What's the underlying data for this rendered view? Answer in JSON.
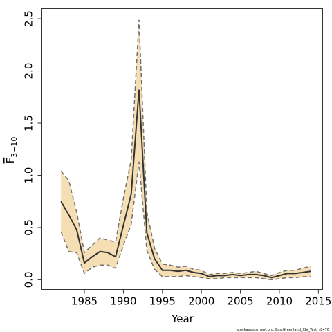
{
  "chart_data": {
    "type": "line",
    "xlabel": "Year",
    "ylabel": {
      "main": "F",
      "sub": "3−10"
    },
    "xlim": [
      1979.5,
      2015.5
    ],
    "ylim": [
      -0.09,
      2.6
    ],
    "xticks": [
      "1985",
      "1990",
      "1995",
      "2000",
      "2005",
      "2010",
      "2015"
    ],
    "yticks": [
      "0.0",
      "0.5",
      "1.0",
      "1.5",
      "2.0",
      "2.5"
    ],
    "band_color": "#f5deb3",
    "line_color": "#333333",
    "bound_color": "#707070",
    "series": [
      {
        "x": [
          1982,
          1983,
          1984,
          1985,
          1986,
          1987,
          1988,
          1989,
          1990,
          1991,
          1992,
          1993,
          1994,
          1995,
          1996,
          1997,
          1998,
          1999,
          2000,
          2001,
          2002,
          2003,
          2004,
          2005,
          2006,
          2007,
          2008,
          2009,
          2010,
          2011,
          2012,
          2013,
          2014
        ],
        "estimate": [
          0.75,
          0.62,
          0.48,
          0.16,
          0.22,
          0.27,
          0.26,
          0.22,
          0.52,
          0.82,
          1.82,
          0.45,
          0.2,
          0.09,
          0.09,
          0.08,
          0.09,
          0.07,
          0.06,
          0.03,
          0.04,
          0.04,
          0.05,
          0.04,
          0.05,
          0.05,
          0.04,
          0.02,
          0.04,
          0.06,
          0.06,
          0.07,
          0.08
        ],
        "upper": [
          1.04,
          0.95,
          0.65,
          0.26,
          0.33,
          0.4,
          0.38,
          0.36,
          0.78,
          1.15,
          2.49,
          0.65,
          0.3,
          0.15,
          0.14,
          0.12,
          0.13,
          0.1,
          0.09,
          0.05,
          0.06,
          0.06,
          0.07,
          0.06,
          0.07,
          0.08,
          0.06,
          0.04,
          0.07,
          0.09,
          0.09,
          0.11,
          0.13
        ],
        "lower": [
          0.46,
          0.27,
          0.26,
          0.06,
          0.12,
          0.14,
          0.14,
          0.11,
          0.33,
          0.53,
          1.13,
          0.28,
          0.1,
          0.03,
          0.03,
          0.03,
          0.04,
          0.03,
          0.02,
          0.01,
          0.01,
          0.02,
          0.02,
          0.02,
          0.02,
          0.02,
          0.01,
          0.0,
          0.01,
          0.02,
          0.02,
          0.03,
          0.03
        ]
      }
    ]
  },
  "footer": {
    "credit": "stockassessment.org, EastGreenland_XIV_Test, r8476"
  }
}
